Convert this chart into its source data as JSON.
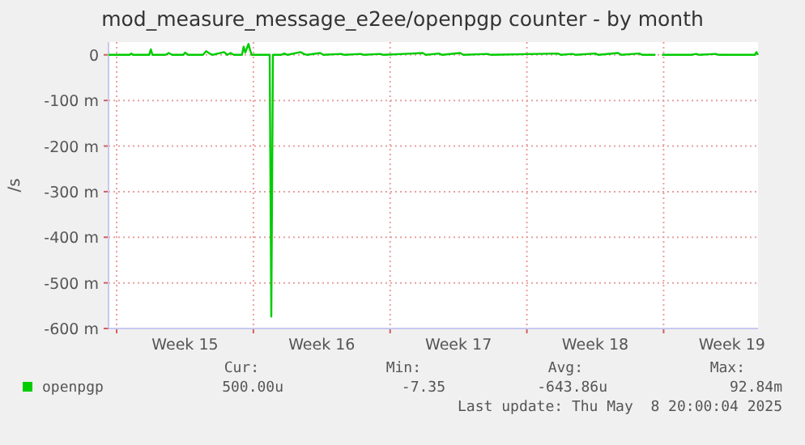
{
  "chart_data": {
    "type": "line",
    "title": "mod_measure_message_e2ee/openpgp counter - by month",
    "ylabel": "/s",
    "xlim": [
      "2025-04-05T14:00",
      "2025-05-08T20:00"
    ],
    "xticks": [
      {
        "value": "2025-04-06",
        "label": null
      },
      {
        "value": "2025-04-09T12:00",
        "label": "Week 15"
      },
      {
        "value": "2025-04-13",
        "label": null
      },
      {
        "value": "2025-04-16T12:00",
        "label": "Week 16"
      },
      {
        "value": "2025-04-20",
        "label": null
      },
      {
        "value": "2025-04-23T12:00",
        "label": "Week 17"
      },
      {
        "value": "2025-04-27",
        "label": null
      },
      {
        "value": "2025-04-30T12:00",
        "label": "Week 18"
      },
      {
        "value": "2025-05-04",
        "label": null
      },
      {
        "value": "2025-05-07T12:00",
        "label": "Week 19"
      }
    ],
    "ylim": [
      -600,
      28
    ],
    "yticks": [
      {
        "value": -600,
        "label": "-600 m"
      },
      {
        "value": -500,
        "label": "-500 m"
      },
      {
        "value": -400,
        "label": "-400 m"
      },
      {
        "value": -300,
        "label": "-300 m"
      },
      {
        "value": -200,
        "label": "-200 m"
      },
      {
        "value": -100,
        "label": "-100 m"
      },
      {
        "value": 0,
        "label": "0"
      }
    ],
    "grid": true,
    "legend": "bottom",
    "x": [
      "2025-04-05T14:00",
      "2025-04-06T16:00",
      "2025-04-06T18:00",
      "2025-04-06T20:00",
      "2025-04-07T16:00",
      "2025-04-07T18:00",
      "2025-04-07T20:00",
      "2025-04-08T12:00",
      "2025-04-08T16:00",
      "2025-04-08T20:00",
      "2025-04-09T10:00",
      "2025-04-09T12:00",
      "2025-04-09T16:00",
      "2025-04-10T10:00",
      "2025-04-10T14:00",
      "2025-04-10T18:00",
      "2025-04-10T22:00",
      "2025-04-11T12:00",
      "2025-04-11T16:00",
      "2025-04-11T20:00",
      "2025-04-12T00:00",
      "2025-04-12T10:00",
      "2025-04-12T12:00",
      "2025-04-12T14:00",
      "2025-04-12T18:00",
      "2025-04-12T20:00",
      "2025-04-12T22:00",
      "2025-04-13T20:00",
      "2025-04-13T22:00",
      "2025-04-14T00:00",
      "2025-04-14T10:00",
      "2025-04-14T14:00",
      "2025-04-14T18:00",
      "2025-04-15T10:00",
      "2025-04-15T14:00",
      "2025-04-15T18:00",
      "2025-04-16T10:00",
      "2025-04-16T14:00",
      "2025-04-17T12:00",
      "2025-04-17T16:00",
      "2025-04-18T12:00",
      "2025-04-18T16:00",
      "2025-04-19T12:00",
      "2025-04-19T16:00",
      "2025-04-21T16:00",
      "2025-04-21T20:00",
      "2025-04-22T12:00",
      "2025-04-22T16:00",
      "2025-04-23T14:00",
      "2025-04-23T18:00",
      "2025-04-25T00:00",
      "2025-04-25T04:00",
      "2025-04-28T14:00",
      "2025-04-28T18:00",
      "2025-04-29T08:00",
      "2025-04-29T12:00",
      "2025-04-30T12:00",
      "2025-04-30T16:00",
      "2025-05-01T16:00",
      "2025-05-01T20:00",
      "2025-05-02T18:00",
      "2025-05-02T22:00",
      "2025-05-03T14:00",
      "2025-05-03T16:00",
      "2025-05-03T22:00",
      "2025-05-05T10:00",
      "2025-05-05T16:00",
      "2025-05-05T20:00",
      "2025-05-06T16:00",
      "2025-05-06T20:00",
      "2025-05-08T16:00",
      "2025-05-08T18:00",
      "2025-05-08T20:00"
    ],
    "series": [
      {
        "name": "openpgp",
        "color": "#00cc00",
        "values": [
          0,
          0,
          3,
          0,
          0,
          12,
          0,
          0,
          4,
          0,
          0,
          5,
          0,
          0,
          8,
          3,
          0,
          6,
          0,
          4,
          0,
          0,
          18,
          5,
          24,
          10,
          0,
          0,
          -574,
          0,
          0,
          3,
          0,
          6,
          2,
          0,
          4,
          0,
          2,
          0,
          2,
          0,
          2,
          0,
          4,
          0,
          3,
          0,
          4,
          0,
          2,
          0,
          3,
          0,
          2,
          0,
          3,
          0,
          4,
          0,
          3,
          0,
          0,
          null,
          0,
          0,
          2,
          0,
          2,
          0,
          0,
          6,
          0
        ]
      }
    ],
    "annotations": [
      "Cur:",
      "Min:",
      "Avg:",
      "Max:",
      "500.00u",
      "-7.35",
      "-643.86u",
      "92.84m",
      "Last update: Thu May  8 20:00:04 2025"
    ]
  }
}
